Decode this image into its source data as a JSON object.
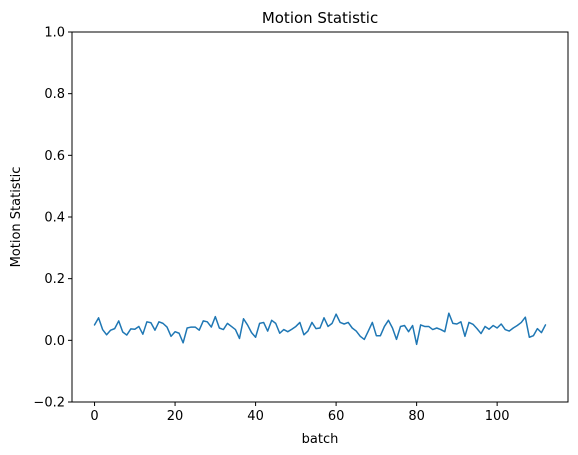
{
  "chart_data": {
    "type": "line",
    "title": "Motion Statistic",
    "xlabel": "batch",
    "ylabel": "Motion Statistic",
    "xlim": [
      -5.6,
      117.6
    ],
    "ylim": [
      -0.2,
      1.0
    ],
    "xticks": [
      0,
      20,
      40,
      60,
      80,
      100
    ],
    "yticks": [
      -0.2,
      0.0,
      0.2,
      0.4,
      0.6,
      0.8,
      1.0
    ],
    "xtick_labels": [
      "0",
      "20",
      "40",
      "60",
      "80",
      "100"
    ],
    "ytick_labels": [
      "−0.2",
      "0.0",
      "0.2",
      "0.4",
      "0.6",
      "0.8",
      "1.0"
    ],
    "grid": false,
    "legend": "none",
    "colors": {
      "line": "#1f77b4",
      "axes": "#000000",
      "background": "#ffffff"
    },
    "series": [
      {
        "x": [
          0,
          1,
          2,
          3,
          4,
          5,
          6,
          7,
          8,
          9,
          10,
          11,
          12,
          13,
          14,
          15,
          16,
          17,
          18,
          19,
          20,
          21,
          22,
          23,
          24,
          25,
          26,
          27,
          28,
          29,
          30,
          31,
          32,
          33,
          34,
          35,
          36,
          37,
          38,
          39,
          40,
          41,
          42,
          43,
          44,
          45,
          46,
          47,
          48,
          49,
          50,
          51,
          52,
          53,
          54,
          55,
          56,
          57,
          58,
          59,
          60,
          61,
          62,
          63,
          64,
          65,
          66,
          67,
          68,
          69,
          70,
          71,
          72,
          73,
          74,
          75,
          76,
          77,
          78,
          79,
          80,
          81,
          82,
          83,
          84,
          85,
          86,
          87,
          88,
          89,
          90,
          91,
          92,
          93,
          94,
          95,
          96,
          97,
          98,
          99,
          100,
          101,
          102,
          103,
          104,
          105,
          106,
          107,
          108,
          109,
          110,
          111,
          112
        ],
        "values": [
          0.05,
          0.073,
          0.035,
          0.018,
          0.033,
          0.038,
          0.063,
          0.027,
          0.017,
          0.037,
          0.036,
          0.045,
          0.02,
          0.06,
          0.057,
          0.033,
          0.06,
          0.055,
          0.043,
          0.013,
          0.028,
          0.023,
          -0.008,
          0.04,
          0.043,
          0.043,
          0.033,
          0.063,
          0.06,
          0.043,
          0.077,
          0.04,
          0.035,
          0.055,
          0.045,
          0.035,
          0.006,
          0.07,
          0.05,
          0.025,
          0.01,
          0.055,
          0.058,
          0.03,
          0.065,
          0.055,
          0.023,
          0.035,
          0.028,
          0.036,
          0.045,
          0.058,
          0.018,
          0.03,
          0.058,
          0.038,
          0.04,
          0.073,
          0.045,
          0.055,
          0.085,
          0.058,
          0.053,
          0.058,
          0.04,
          0.03,
          0.013,
          0.003,
          0.03,
          0.058,
          0.015,
          0.015,
          0.045,
          0.065,
          0.04,
          0.003,
          0.045,
          0.048,
          0.028,
          0.048,
          -0.013,
          0.05,
          0.045,
          0.045,
          0.035,
          0.04,
          0.035,
          0.028,
          0.088,
          0.055,
          0.053,
          0.06,
          0.013,
          0.058,
          0.052,
          0.038,
          0.022,
          0.045,
          0.036,
          0.048,
          0.04,
          0.053,
          0.035,
          0.03,
          0.04,
          0.048,
          0.058,
          0.075,
          0.01,
          0.015,
          0.038,
          0.025,
          0.05
        ]
      }
    ]
  }
}
